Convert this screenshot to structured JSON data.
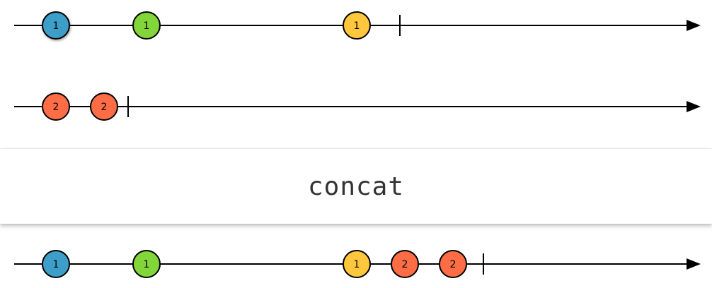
{
  "operator": {
    "label": "concat"
  },
  "colors": {
    "blue": "#3d9ec9",
    "green": "#82d63a",
    "yellow": "#ffc73d",
    "red": "#ff6d46",
    "line": "#000000"
  },
  "streams": {
    "input_1": {
      "marbles": [
        {
          "value": "1",
          "color": "blue"
        },
        {
          "value": "1",
          "color": "green"
        },
        {
          "value": "1",
          "color": "yellow"
        }
      ],
      "completed": true
    },
    "input_2": {
      "marbles": [
        {
          "value": "2",
          "color": "red"
        },
        {
          "value": "2",
          "color": "red"
        }
      ],
      "completed": true
    },
    "output": {
      "marbles": [
        {
          "value": "1",
          "color": "blue"
        },
        {
          "value": "1",
          "color": "green"
        },
        {
          "value": "1",
          "color": "yellow"
        },
        {
          "value": "2",
          "color": "red"
        },
        {
          "value": "2",
          "color": "red"
        }
      ],
      "completed": true
    }
  }
}
